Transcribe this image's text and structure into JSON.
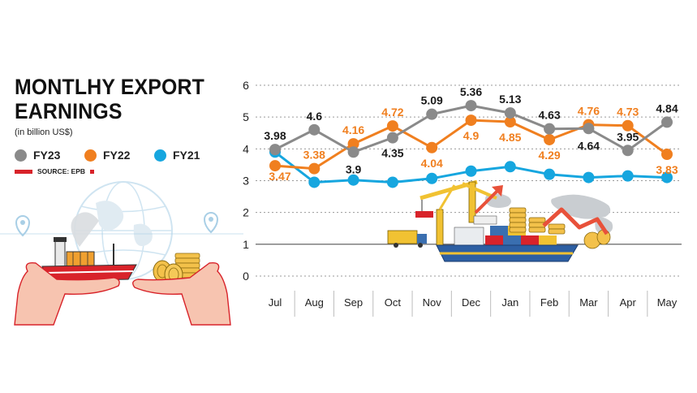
{
  "chart_data": {
    "type": "line",
    "title": "MONTLHY EXPORT EARNINGS",
    "subtitle": "(in billion US$)",
    "source": "SOURCE: EPB",
    "categories": [
      "Jul",
      "Aug",
      "Sep",
      "Oct",
      "Nov",
      "Dec",
      "Jan",
      "Feb",
      "Mar",
      "Apr",
      "May"
    ],
    "yticks": [
      "0",
      "1",
      "2",
      "3",
      "4",
      "5",
      "6"
    ],
    "ylim": [
      0,
      6
    ],
    "legend_position": "top-left",
    "series": [
      {
        "name": "FY23",
        "color": "#8a8a8a",
        "values": [
          3.98,
          4.6,
          3.9,
          4.35,
          5.09,
          5.36,
          5.13,
          4.63,
          4.64,
          3.95,
          4.84
        ],
        "labels": [
          "3.98",
          "4.6",
          "3.9",
          "4.35",
          "5.09",
          "5.36",
          "5.13",
          "4.63",
          "4.64",
          "3.95",
          "4.84"
        ]
      },
      {
        "name": "FY22",
        "color": "#f07f1f",
        "values": [
          3.47,
          3.38,
          4.16,
          4.72,
          4.04,
          4.9,
          4.85,
          4.29,
          4.76,
          4.73,
          3.83
        ],
        "labels": [
          "3.47",
          "3.38",
          "4.16",
          "4.72",
          "4.04",
          "4.9",
          "4.85",
          "4.29",
          "4.76",
          "4.73",
          "3.83"
        ]
      },
      {
        "name": "FY21",
        "color": "#16a6df",
        "values": [
          3.9,
          2.95,
          3.02,
          2.95,
          3.07,
          3.3,
          3.44,
          3.2,
          3.1,
          3.15,
          3.1
        ],
        "labels": []
      }
    ]
  },
  "icons": [
    "globe-icon",
    "cargo-ship-icon",
    "coin-stack-icon",
    "open-hands-icon",
    "location-pin-icon",
    "port-crane-icon",
    "container-ship-icon",
    "down-arrow-icon",
    "up-arrow-icon",
    "world-map-icon"
  ]
}
